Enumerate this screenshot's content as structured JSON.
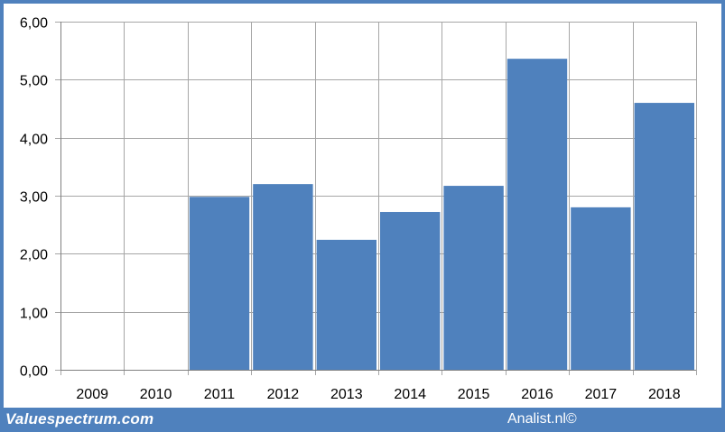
{
  "chart_data": {
    "type": "bar",
    "categories": [
      "2009",
      "2010",
      "2011",
      "2012",
      "2013",
      "2014",
      "2015",
      "2016",
      "2017",
      "2018"
    ],
    "values": [
      null,
      null,
      2.98,
      3.2,
      2.24,
      2.72,
      3.17,
      5.36,
      2.8,
      4.6
    ],
    "ylim": [
      0,
      6
    ],
    "yticks": [
      0,
      1,
      2,
      3,
      4,
      5,
      6
    ],
    "ytick_labels": [
      "0,00",
      "1,00",
      "2,00",
      "3,00",
      "4,00",
      "5,00",
      "6,00"
    ],
    "grid": true,
    "title": "",
    "xlabel": "",
    "ylabel": "",
    "colors": {
      "bar": "#4f81bd",
      "frame": "#4f81bd",
      "grid": "#a6a6a6"
    }
  },
  "footer": {
    "left": "Valuespectrum.com",
    "right": "Analist.nl©"
  }
}
